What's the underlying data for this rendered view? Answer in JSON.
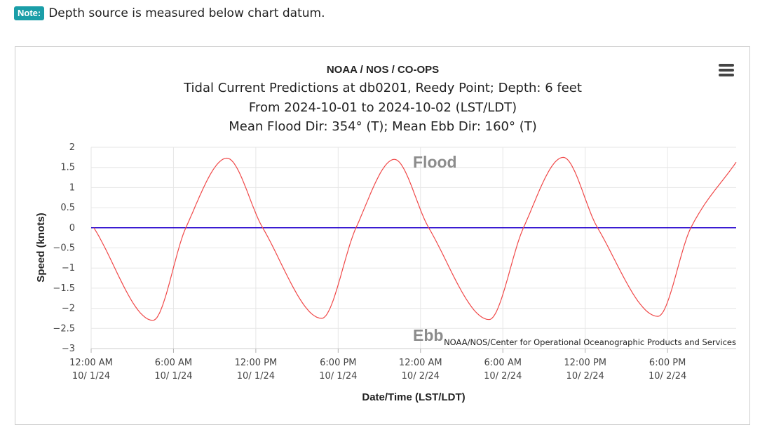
{
  "note": {
    "badge": "Note:",
    "text": "Depth source is measured below chart datum."
  },
  "menu_icon": "hamburger-menu-icon",
  "colors": {
    "note_badge": "#1a9ea8",
    "series": "#f04848",
    "zero_line": "#2200cc",
    "grid": "#e6e6e6"
  },
  "chart_data": {
    "type": "line",
    "title": "NOAA / NOS / CO-OPS",
    "subtitle": [
      "Tidal Current Predictions at db0201, Reedy Point; Depth: 6 feet",
      "From 2024-10-01 to 2024-10-02 (LST/LDT)",
      "Mean Flood Dir: 354° (T); Mean Ebb Dir: 160° (T)"
    ],
    "xlabel": "Date/Time (LST/LDT)",
    "ylabel": "Speed (knots)",
    "ylim": [
      -3,
      2
    ],
    "y_ticks": [
      "2",
      "1.5",
      "1",
      "0.5",
      "0",
      "−0.5",
      "−1",
      "−1.5",
      "−2",
      "−2.5",
      "−3"
    ],
    "y_tick_values": [
      2,
      1.5,
      1,
      0.5,
      0,
      -0.5,
      -1,
      -1.5,
      -2,
      -2.5,
      -3
    ],
    "xlim_hours": [
      0,
      47
    ],
    "x_ticks": [
      {
        "time": "12:00 AM",
        "date": "10/ 1/24",
        "hour": 0
      },
      {
        "time": "6:00 AM",
        "date": "10/ 1/24",
        "hour": 6
      },
      {
        "time": "12:00 PM",
        "date": "10/ 1/24",
        "hour": 12
      },
      {
        "time": "6:00 PM",
        "date": "10/ 1/24",
        "hour": 18
      },
      {
        "time": "12:00 AM",
        "date": "10/ 2/24",
        "hour": 24
      },
      {
        "time": "6:00 AM",
        "date": "10/ 2/24",
        "hour": 30
      },
      {
        "time": "12:00 PM",
        "date": "10/ 2/24",
        "hour": 36
      },
      {
        "time": "6:00 PM",
        "date": "10/ 2/24",
        "hour": 42
      }
    ],
    "series": [
      {
        "values_hours": [
          0.2,
          4.5,
          6.9,
          9.9,
          12.5,
          16.8,
          19.3,
          22.1,
          24.6,
          29.0,
          31.5,
          34.4,
          36.9,
          41.3,
          43.7,
          47.0
        ],
        "values_knots": [
          0,
          -2.3,
          0,
          1.73,
          0,
          -2.25,
          0,
          1.7,
          0,
          -2.28,
          0,
          1.75,
          0,
          -2.2,
          0,
          1.63
        ]
      }
    ],
    "annotations": {
      "flood": "Flood",
      "ebb": "Ebb"
    },
    "credit": "NOAA/NOS/Center for Operational Oceanographic Products and Services",
    "grid": true,
    "zero_line": true
  }
}
